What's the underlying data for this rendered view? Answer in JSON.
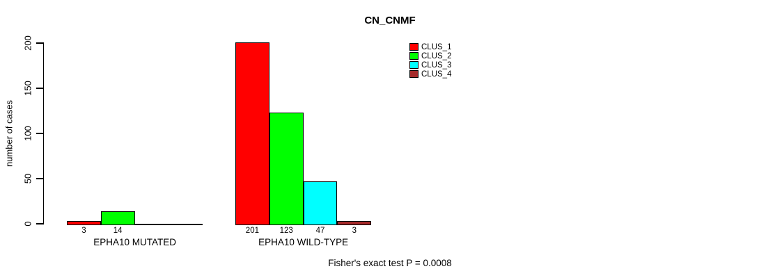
{
  "title": "CN_CNMF",
  "ylabel": "number of cases",
  "footer": "Fisher's exact test P = 0.0008",
  "colors": {
    "clus_1": "#FF0000",
    "clus_2": "#00FF00",
    "clus_3": "#00FFFF",
    "clus_4": "#A52A2A",
    "axis": "#000000"
  },
  "chart_data": {
    "type": "bar",
    "title": "CN_CNMF",
    "xlabel": "",
    "ylabel": "number of cases",
    "categories": [
      "EPHA10 MUTATED",
      "EPHA10 WILD-TYPE"
    ],
    "series": [
      {
        "name": "CLUS_1",
        "color": "#FF0000",
        "values": [
          3,
          201
        ]
      },
      {
        "name": "CLUS_2",
        "color": "#00FF00",
        "values": [
          14,
          123
        ]
      },
      {
        "name": "CLUS_3",
        "color": "#00FFFF",
        "values": [
          0,
          47
        ]
      },
      {
        "name": "CLUS_4",
        "color": "#A52A2A",
        "values": [
          0,
          3
        ]
      }
    ],
    "bar_value_labels": {
      "EPHA10 MUTATED": [
        3,
        14
      ],
      "EPHA10 WILD-TYPE": [
        201,
        123,
        47,
        3
      ]
    },
    "ylim": [
      0,
      200
    ],
    "yticks": [
      0,
      50,
      100,
      150,
      200
    ],
    "grid": false,
    "legend_position": "top-right",
    "legend_entries": [
      "CLUS_1",
      "CLUS_2",
      "CLUS_3",
      "CLUS_4"
    ],
    "annotation": "Fisher's exact test P = 0.0008"
  }
}
